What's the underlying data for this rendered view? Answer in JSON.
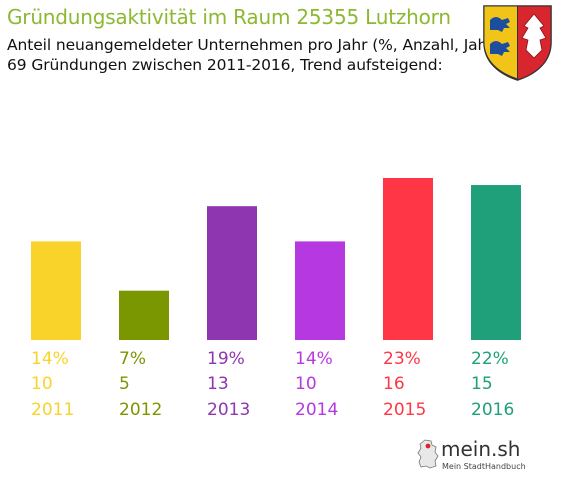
{
  "header": {
    "title": "Gründungsaktivität im Raum 25355 Lutzhorn",
    "subtitle1": "Anteil neuangemeldeter Unternehmen pro Jahr (%, Anzahl, Jahr)",
    "subtitle2": "69 Gründungen zwischen 2011-2016, Trend aufsteigend:"
  },
  "branding": {
    "crest_icon": "schleswig-holstein-coat-of-arms-icon",
    "logo_text": "mein.sh",
    "logo_subtext": "Mein StadtHandbuch"
  },
  "chart_data": {
    "type": "bar",
    "categories": [
      "2011",
      "2012",
      "2013",
      "2014",
      "2015",
      "2016"
    ],
    "values": [
      14,
      7,
      19,
      14,
      23,
      22
    ],
    "counts": [
      10,
      5,
      13,
      10,
      16,
      15
    ],
    "percent_labels": [
      "14%",
      "7%",
      "19%",
      "14%",
      "23%",
      "22%"
    ],
    "count_labels": [
      "10",
      "5",
      "13",
      "10",
      "16",
      "15"
    ],
    "colors": [
      "#fad32a",
      "#7a9600",
      "#8e35b0",
      "#b638e0",
      "#ff3645",
      "#1fa07a"
    ],
    "ylim": [
      0,
      23
    ],
    "grid": false,
    "legend": "none",
    "xlabel": "",
    "ylabel": ""
  }
}
